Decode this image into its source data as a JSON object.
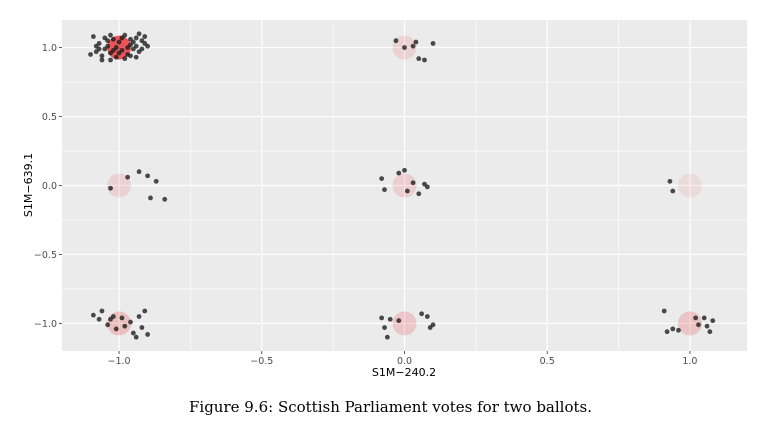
{
  "caption": "Figure 9.6: Scottish Parliament votes for two ballots.",
  "chart_data": {
    "type": "scatter",
    "xlabel": "S1M−240.2",
    "ylabel": "S1M−639.1",
    "xlim": [
      -1.2,
      1.2
    ],
    "ylim": [
      -1.2,
      1.2
    ],
    "x_ticks": [
      -1.0,
      -0.5,
      0.0,
      0.5,
      1.0
    ],
    "x_tick_labels": [
      "−1.0",
      "−0.5",
      "0.0",
      "0.5",
      "1.0"
    ],
    "y_ticks": [
      -1.0,
      -0.5,
      0.0,
      0.5,
      1.0
    ],
    "y_tick_labels": [
      "−1.0",
      "−0.5",
      "0.0",
      "0.5",
      "1.0"
    ],
    "grid": true,
    "colors": {
      "panel": "#ebebeb",
      "grid": "#ffffff",
      "point": "#1a1a1a",
      "count_marker": "#e8232a"
    },
    "count_markers": [
      {
        "x": -1,
        "y": 1,
        "opacity": 0.75
      },
      {
        "x": 0,
        "y": 1,
        "opacity": 0.12
      },
      {
        "x": -1,
        "y": 0,
        "opacity": 0.12
      },
      {
        "x": 0,
        "y": 0,
        "opacity": 0.14
      },
      {
        "x": 1,
        "y": 0,
        "opacity": 0.08
      },
      {
        "x": -1,
        "y": -1,
        "opacity": 0.22
      },
      {
        "x": 0,
        "y": -1,
        "opacity": 0.18
      },
      {
        "x": 1,
        "y": -1,
        "opacity": 0.2
      }
    ],
    "points": [
      {
        "x": -1.09,
        "y": 1.08
      },
      {
        "x": -1.08,
        "y": 0.97
      },
      {
        "x": -1.07,
        "y": 1.03
      },
      {
        "x": -1.06,
        "y": 0.94
      },
      {
        "x": -1.05,
        "y": 0.99
      },
      {
        "x": -1.04,
        "y": 1.01
      },
      {
        "x": -1.03,
        "y": 0.96
      },
      {
        "x": -1.02,
        "y": 1.06
      },
      {
        "x": -1.01,
        "y": 0.93
      },
      {
        "x": -1.0,
        "y": 1.04
      },
      {
        "x": -0.99,
        "y": 0.98
      },
      {
        "x": -0.98,
        "y": 1.09
      },
      {
        "x": -0.97,
        "y": 0.95
      },
      {
        "x": -0.96,
        "y": 1.02
      },
      {
        "x": -0.95,
        "y": 0.99
      },
      {
        "x": -0.94,
        "y": 1.07
      },
      {
        "x": -0.93,
        "y": 0.97
      },
      {
        "x": -0.92,
        "y": 1.05
      },
      {
        "x": -0.91,
        "y": 1.08
      },
      {
        "x": -0.9,
        "y": 1.01
      },
      {
        "x": -1.08,
        "y": 1.01
      },
      {
        "x": -1.05,
        "y": 1.07
      },
      {
        "x": -1.03,
        "y": 0.91
      },
      {
        "x": -1.01,
        "y": 1.0
      },
      {
        "x": -0.98,
        "y": 0.92
      },
      {
        "x": -0.96,
        "y": 1.06
      },
      {
        "x": -0.94,
        "y": 0.93
      },
      {
        "x": -0.92,
        "y": 0.99
      },
      {
        "x": -1.1,
        "y": 0.95
      },
      {
        "x": -1.06,
        "y": 0.91
      },
      {
        "x": -0.99,
        "y": 1.07
      },
      {
        "x": -0.95,
        "y": 1.04
      },
      {
        "x": -0.91,
        "y": 1.03
      },
      {
        "x": -1.02,
        "y": 0.98
      },
      {
        "x": -0.97,
        "y": 1.0
      },
      {
        "x": -1.04,
        "y": 1.05
      },
      {
        "x": -0.93,
        "y": 1.1
      },
      {
        "x": -1.07,
        "y": 0.99
      },
      {
        "x": -1.0,
        "y": 0.96
      },
      {
        "x": -0.96,
        "y": 0.94
      },
      {
        "x": -0.94,
        "y": 1.01
      },
      {
        "x": -1.03,
        "y": 1.09
      },
      {
        "x": -0.03,
        "y": 1.05
      },
      {
        "x": 0.0,
        "y": 1.0
      },
      {
        "x": 0.03,
        "y": 1.01
      },
      {
        "x": 0.04,
        "y": 1.04
      },
      {
        "x": 0.05,
        "y": 0.92
      },
      {
        "x": 0.07,
        "y": 0.91
      },
      {
        "x": 0.1,
        "y": 1.03
      },
      {
        "x": -1.03,
        "y": -0.02
      },
      {
        "x": -0.97,
        "y": 0.06
      },
      {
        "x": -0.93,
        "y": 0.1
      },
      {
        "x": -0.9,
        "y": 0.07
      },
      {
        "x": -0.87,
        "y": 0.03
      },
      {
        "x": -0.89,
        "y": -0.09
      },
      {
        "x": -0.84,
        "y": -0.1
      },
      {
        "x": -0.08,
        "y": 0.05
      },
      {
        "x": -0.07,
        "y": -0.03
      },
      {
        "x": -0.02,
        "y": 0.09
      },
      {
        "x": 0.0,
        "y": 0.11
      },
      {
        "x": 0.01,
        "y": -0.04
      },
      {
        "x": 0.03,
        "y": 0.02
      },
      {
        "x": 0.05,
        "y": -0.06
      },
      {
        "x": 0.07,
        "y": 0.01
      },
      {
        "x": 0.08,
        "y": -0.01
      },
      {
        "x": 0.93,
        "y": 0.03
      },
      {
        "x": 0.94,
        "y": -0.04
      },
      {
        "x": -1.09,
        "y": -0.94
      },
      {
        "x": -1.07,
        "y": -0.97
      },
      {
        "x": -1.06,
        "y": -0.91
      },
      {
        "x": -1.04,
        "y": -1.01
      },
      {
        "x": -1.02,
        "y": -0.95
      },
      {
        "x": -1.01,
        "y": -1.04
      },
      {
        "x": -0.98,
        "y": -1.02
      },
      {
        "x": -0.96,
        "y": -0.99
      },
      {
        "x": -0.95,
        "y": -1.07
      },
      {
        "x": -0.93,
        "y": -0.95
      },
      {
        "x": -0.92,
        "y": -1.03
      },
      {
        "x": -0.91,
        "y": -0.91
      },
      {
        "x": -0.9,
        "y": -1.08
      },
      {
        "x": -1.03,
        "y": -0.97
      },
      {
        "x": -0.99,
        "y": -0.96
      },
      {
        "x": -0.94,
        "y": -1.1
      },
      {
        "x": -0.08,
        "y": -0.96
      },
      {
        "x": -0.07,
        "y": -1.03
      },
      {
        "x": -0.06,
        "y": -1.1
      },
      {
        "x": -0.05,
        "y": -0.97
      },
      {
        "x": -0.02,
        "y": -0.98
      },
      {
        "x": 0.06,
        "y": -0.93
      },
      {
        "x": 0.08,
        "y": -0.95
      },
      {
        "x": 0.09,
        "y": -1.03
      },
      {
        "x": 0.1,
        "y": -1.01
      },
      {
        "x": 0.91,
        "y": -0.91
      },
      {
        "x": 0.92,
        "y": -1.06
      },
      {
        "x": 0.94,
        "y": -1.04
      },
      {
        "x": 0.96,
        "y": -1.05
      },
      {
        "x": 1.02,
        "y": -0.96
      },
      {
        "x": 1.03,
        "y": -1.01
      },
      {
        "x": 1.05,
        "y": -0.96
      },
      {
        "x": 1.06,
        "y": -1.02
      },
      {
        "x": 1.07,
        "y": -1.06
      },
      {
        "x": 1.08,
        "y": -0.98
      }
    ]
  }
}
